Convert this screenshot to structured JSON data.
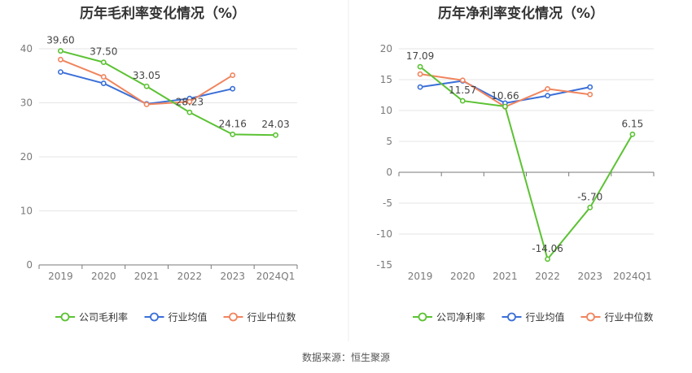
{
  "source": "数据来源：恒生聚源",
  "colors": {
    "company": "#5cc234",
    "avg": "#3a6fd8",
    "median": "#f0855e",
    "grid": "#e6e6e6",
    "axis": "#7a7a7a",
    "text": "#7a7a7a",
    "label": "#444444",
    "title": "#333333"
  },
  "chart_data": [
    {
      "type": "line",
      "title": "历年毛利率变化情况（%）",
      "categories": [
        "2019",
        "2020",
        "2021",
        "2022",
        "2023",
        "2024Q1"
      ],
      "ylim": [
        0,
        40
      ],
      "yticks": [
        0,
        10,
        20,
        30,
        40
      ],
      "series": [
        {
          "name": "公司毛利率",
          "color": "#5cc234",
          "values": [
            39.6,
            37.5,
            33.05,
            28.23,
            24.16,
            24.03
          ],
          "labels": [
            "39.60",
            "37.50",
            "33.05",
            "28.23",
            "24.16",
            "24.03"
          ]
        },
        {
          "name": "行业均值",
          "color": "#3a6fd8",
          "values": [
            35.7,
            33.6,
            29.8,
            30.8,
            32.6,
            null
          ]
        },
        {
          "name": "行业中位数",
          "color": "#f0855e",
          "values": [
            38.0,
            34.8,
            29.7,
            30.2,
            35.1,
            null
          ]
        }
      ]
    },
    {
      "type": "line",
      "title": "历年净利率变化情况（%）",
      "categories": [
        "2019",
        "2020",
        "2021",
        "2022",
        "2023",
        "2024Q1"
      ],
      "ylim": [
        -15,
        20
      ],
      "yticks": [
        -15,
        -10,
        -5,
        0,
        5,
        10,
        15,
        20
      ],
      "series": [
        {
          "name": "公司净利率",
          "color": "#5cc234",
          "values": [
            17.09,
            11.57,
            10.66,
            -14.06,
            -5.7,
            6.15
          ],
          "labels": [
            "17.09",
            "11.57",
            "10.66",
            "-14.06",
            "-5.70",
            "6.15"
          ]
        },
        {
          "name": "行业均值",
          "color": "#3a6fd8",
          "values": [
            13.8,
            14.8,
            11.2,
            12.4,
            13.8,
            null
          ]
        },
        {
          "name": "行业中位数",
          "color": "#f0855e",
          "values": [
            15.9,
            14.9,
            10.6,
            13.5,
            12.6,
            null
          ]
        }
      ]
    }
  ]
}
